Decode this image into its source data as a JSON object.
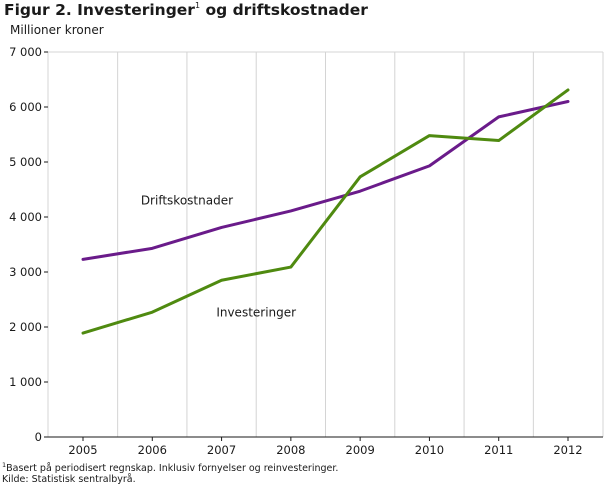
{
  "chart_data": {
    "type": "line",
    "title_prefix": "Figur 2. Investeringer",
    "title_mark": "1",
    "title_suffix": " og driftskostnader",
    "ylabel": "Millioner kroner",
    "x": [
      "2005",
      "2006",
      "2007",
      "2008",
      "2009",
      "2010",
      "2011",
      "2012"
    ],
    "yticks": [
      "0",
      "1 000",
      "2 000",
      "3 000",
      "4 000",
      "5 000",
      "6 000",
      "7 000"
    ],
    "ylim": [
      0,
      7000
    ],
    "grid": "vertical",
    "series": [
      {
        "name": "Driftskostnader",
        "color": "#6a1b8a",
        "values": [
          3230,
          3430,
          3810,
          4110,
          4470,
          4930,
          5820,
          6100
        ]
      },
      {
        "name": "Investeringer",
        "color": "#4f8a10",
        "values": [
          1890,
          2270,
          2850,
          3090,
          4730,
          5480,
          5390,
          6310
        ]
      }
    ],
    "footnote_mark": "1",
    "footnote": "Basert på periodisert regnskap. Inklusiv fornyelser og reinvesteringer.",
    "source": "Kilde: Statistisk sentralbyrå."
  }
}
